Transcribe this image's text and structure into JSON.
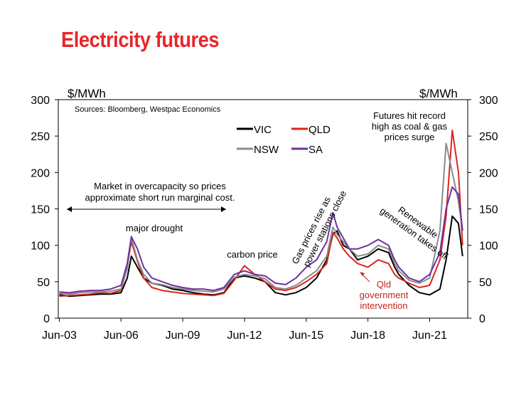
{
  "title": "Electricity futures",
  "chart_data": {
    "type": "line",
    "ylabel_left": "$/MWh",
    "ylabel_right": "$/MWh",
    "source": "Sources: Bloomberg, Westpac Economics",
    "ylim": [
      0,
      300
    ],
    "yticks": [
      "0",
      "50",
      "100",
      "150",
      "200",
      "250",
      "300"
    ],
    "xticks": [
      "Jun-03",
      "Jun-06",
      "Jun-09",
      "Jun-12",
      "Jun-15",
      "Jun-18",
      "Jun-21"
    ],
    "grid": false,
    "legend_position": "top-right",
    "x": [
      2003.5,
      2004.0,
      2004.5,
      2005.0,
      2005.5,
      2006.0,
      2006.5,
      2006.8,
      2007.0,
      2007.3,
      2007.6,
      2008.0,
      2008.5,
      2009.0,
      2009.5,
      2010.0,
      2010.5,
      2011.0,
      2011.5,
      2012.0,
      2012.5,
      2013.0,
      2013.5,
      2014.0,
      2014.5,
      2015.0,
      2015.5,
      2016.0,
      2016.5,
      2016.8,
      2017.0,
      2017.3,
      2017.6,
      2018.0,
      2018.5,
      2019.0,
      2019.5,
      2019.8,
      2020.0,
      2020.5,
      2021.0,
      2021.5,
      2022.0,
      2022.3,
      2022.6,
      2022.9,
      2023.1
    ],
    "series": [
      {
        "name": "VIC",
        "color": "#000000",
        "values": [
          32,
          30,
          31,
          32,
          33,
          33,
          35,
          55,
          85,
          70,
          55,
          48,
          45,
          40,
          38,
          35,
          33,
          32,
          35,
          55,
          58,
          55,
          50,
          35,
          32,
          35,
          42,
          55,
          80,
          115,
          120,
          100,
          95,
          80,
          85,
          95,
          90,
          70,
          60,
          45,
          35,
          32,
          40,
          80,
          140,
          130,
          85
        ]
      },
      {
        "name": "QLD",
        "color": "#d7261e",
        "values": [
          30,
          31,
          32,
          33,
          35,
          34,
          38,
          70,
          105,
          78,
          55,
          42,
          38,
          36,
          34,
          33,
          32,
          31,
          34,
          52,
          72,
          60,
          50,
          40,
          38,
          42,
          50,
          60,
          75,
          118,
          110,
          95,
          85,
          75,
          70,
          80,
          75,
          60,
          55,
          48,
          42,
          45,
          80,
          140,
          258,
          200,
          100
        ]
      },
      {
        "name": "NSW",
        "color": "#8c8c8c",
        "values": [
          34,
          33,
          35,
          36,
          36,
          37,
          40,
          68,
          110,
          80,
          60,
          48,
          46,
          42,
          40,
          38,
          37,
          36,
          40,
          56,
          60,
          58,
          54,
          42,
          40,
          45,
          55,
          65,
          85,
          125,
          115,
          105,
          95,
          85,
          88,
          100,
          95,
          75,
          65,
          52,
          48,
          55,
          120,
          240,
          200,
          160,
          120
        ]
      },
      {
        "name": "SA",
        "color": "#7030a0",
        "values": [
          36,
          35,
          37,
          38,
          38,
          40,
          45,
          75,
          112,
          95,
          70,
          55,
          50,
          45,
          42,
          40,
          40,
          38,
          42,
          60,
          65,
          60,
          58,
          48,
          46,
          55,
          70,
          80,
          105,
          145,
          125,
          110,
          95,
          95,
          100,
          108,
          100,
          80,
          70,
          55,
          50,
          60,
          90,
          150,
          180,
          170,
          120
        ]
      }
    ],
    "annotations": {
      "overcapacity": [
        "Market in overcapacity so prices",
        "approximate short run marginal cost."
      ],
      "drought": "major drought",
      "carbon": "carbon price",
      "gas": [
        "Gas prices rise as",
        "power stations close"
      ],
      "renewable": [
        "Renewable",
        "generation takes off"
      ],
      "qld": [
        "Qld",
        "government",
        "intervention"
      ],
      "record": [
        "Futures hit record",
        "high as coal & gas",
        "prices surge"
      ]
    }
  }
}
